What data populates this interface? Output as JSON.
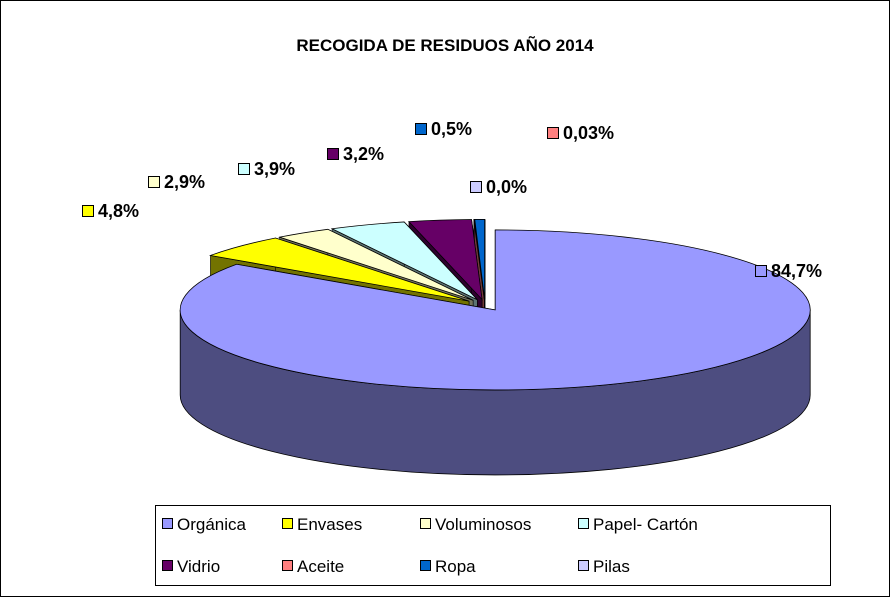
{
  "chart_data": {
    "type": "pie3d",
    "title": "RECOGIDA DE RESIDUOS AÑO 2014",
    "categories": [
      "Orgánica",
      "Envases",
      "Voluminosos",
      "Papel- Cartón",
      "Vidrio",
      "Aceite",
      "Ropa",
      "Pilas"
    ],
    "values": [
      84.7,
      4.8,
      2.9,
      3.9,
      3.2,
      0.03,
      0.5,
      0.0
    ],
    "value_labels": [
      "84,7%",
      "4,8%",
      "2,9%",
      "3,9%",
      "3,2%",
      "0,03%",
      "0,5%",
      "0,0%"
    ],
    "colors": [
      "#9999ff",
      "#ffff00",
      "#ffffcc",
      "#ccffff",
      "#660066",
      "#ff8080",
      "#0066cc",
      "#ccccff"
    ],
    "legend": "bottom"
  }
}
